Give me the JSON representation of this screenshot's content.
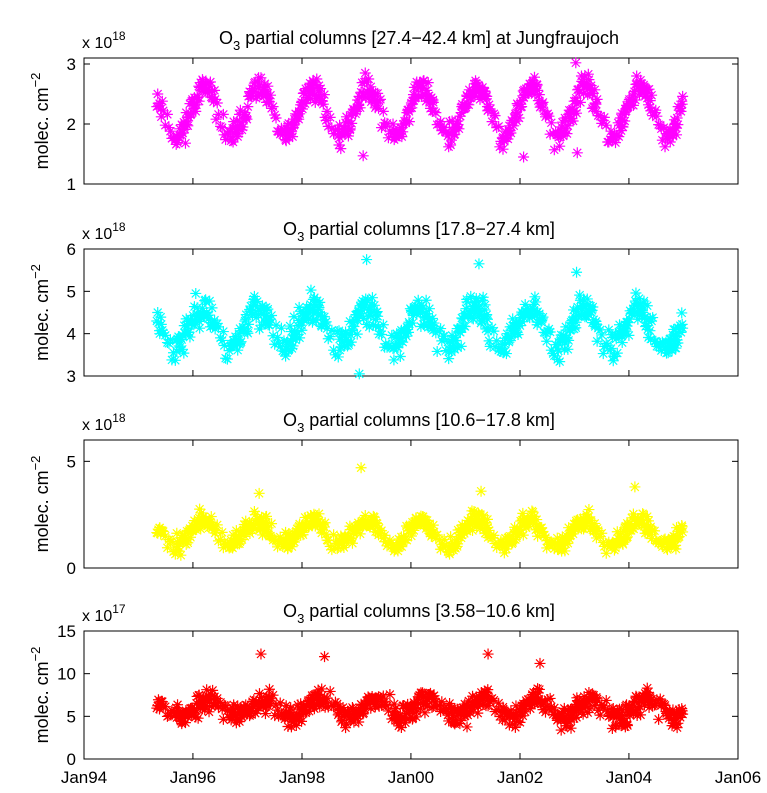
{
  "chart_data": [
    {
      "type": "scatter",
      "title_main": "O",
      "title_sub": "3",
      "title_rest": " partial columns [27.4−42.4 km] at Jungfraujoch",
      "ylabel": "molec. cm",
      "ylabel_exp": "−2",
      "multiplier_base": "x 10",
      "multiplier_exp": "18",
      "ylim": [
        1,
        3.1
      ],
      "yticks": [
        1,
        2,
        3
      ],
      "ytick_labels": [
        "1",
        "2",
        "3"
      ],
      "color": "#ff00ff",
      "model": {
        "mean": 2.2,
        "amp": 0.4,
        "phase_day": 75,
        "noise": 0.2,
        "seed": 11,
        "min": 1.45,
        "max": 3.0
      },
      "outliers": [
        {
          "x": "2003-01-10",
          "y": 3.02
        },
        {
          "x": "2003-01-20",
          "y": 1.52
        },
        {
          "x": "1999-02-15",
          "y": 1.47
        },
        {
          "x": "2002-01-25",
          "y": 1.45
        }
      ],
      "x": [],
      "y": []
    },
    {
      "type": "scatter",
      "title_main": "O",
      "title_sub": "3",
      "title_rest": " partial columns [17.8−27.4 km]",
      "ylabel": "molec. cm",
      "ylabel_exp": "−2",
      "multiplier_base": "x 10",
      "multiplier_exp": "18",
      "ylim": [
        3,
        6
      ],
      "yticks": [
        3,
        4,
        5,
        6
      ],
      "ytick_labels": [
        "3",
        "4",
        "5",
        "6"
      ],
      "color": "#00ffff",
      "model": {
        "mean": 4.15,
        "amp": 0.45,
        "phase_day": 65,
        "noise": 0.35,
        "seed": 23,
        "min": 3.05,
        "max": 5.75
      },
      "outliers": [
        {
          "x": "1999-03-10",
          "y": 5.75
        },
        {
          "x": "2001-04-01",
          "y": 5.65
        },
        {
          "x": "1999-01-20",
          "y": 3.05
        },
        {
          "x": "2003-01-15",
          "y": 5.45
        }
      ],
      "x": [],
      "y": []
    },
    {
      "type": "scatter",
      "title_main": "O",
      "title_sub": "3",
      "title_rest": " partial columns [10.6−17.8 km]",
      "ylabel": "molec. cm",
      "ylabel_exp": "−2",
      "multiplier_base": "x 10",
      "multiplier_exp": "18",
      "ylim": [
        0,
        6
      ],
      "yticks": [
        0,
        5
      ],
      "ytick_labels": [
        "0",
        "5"
      ],
      "color": "#ffff00",
      "model": {
        "mean": 1.65,
        "amp": 0.6,
        "phase_day": 70,
        "noise": 0.45,
        "seed": 37,
        "min": 0.6,
        "max": 4.8
      },
      "outliers": [
        {
          "x": "1999-02-01",
          "y": 4.7
        },
        {
          "x": "1997-03-20",
          "y": 3.5
        },
        {
          "x": "2004-02-10",
          "y": 3.8
        },
        {
          "x": "2001-04-15",
          "y": 3.6
        }
      ],
      "x": [],
      "y": []
    },
    {
      "type": "scatter",
      "title_main": "O",
      "title_sub": "3",
      "title_rest": " partial columns [3.58−10.6 km]",
      "ylabel": "molec. cm",
      "ylabel_exp": "−2",
      "multiplier_base": "x 10",
      "multiplier_exp": "17",
      "ylim": [
        0,
        15
      ],
      "yticks": [
        0,
        5,
        10,
        15
      ],
      "ytick_labels": [
        "0",
        "5",
        "10",
        "15"
      ],
      "color": "#ff0000",
      "model": {
        "mean": 6.0,
        "amp": 1.0,
        "phase_day": 120,
        "noise": 1.3,
        "seed": 53,
        "min": 3.2,
        "max": 12.3
      },
      "outliers": [
        {
          "x": "1997-04-01",
          "y": 12.3
        },
        {
          "x": "2001-06-01",
          "y": 12.3
        },
        {
          "x": "1998-06-01",
          "y": 12.0
        },
        {
          "x": "2002-05-15",
          "y": 11.2
        }
      ],
      "x": [],
      "y": []
    }
  ],
  "xaxis": {
    "range": [
      "1994-01-01",
      "2006-01-01"
    ],
    "ticks": [
      "1994-01-01",
      "1996-01-01",
      "1998-01-01",
      "2000-01-01",
      "2002-01-01",
      "2004-01-01",
      "2006-01-01"
    ],
    "tick_labels": [
      "Jan94",
      "Jan96",
      "Jan98",
      "Jan00",
      "Jan02",
      "Jan04",
      "Jan06"
    ],
    "data_start": "1995-05-01",
    "data_end": "2004-12-31"
  }
}
